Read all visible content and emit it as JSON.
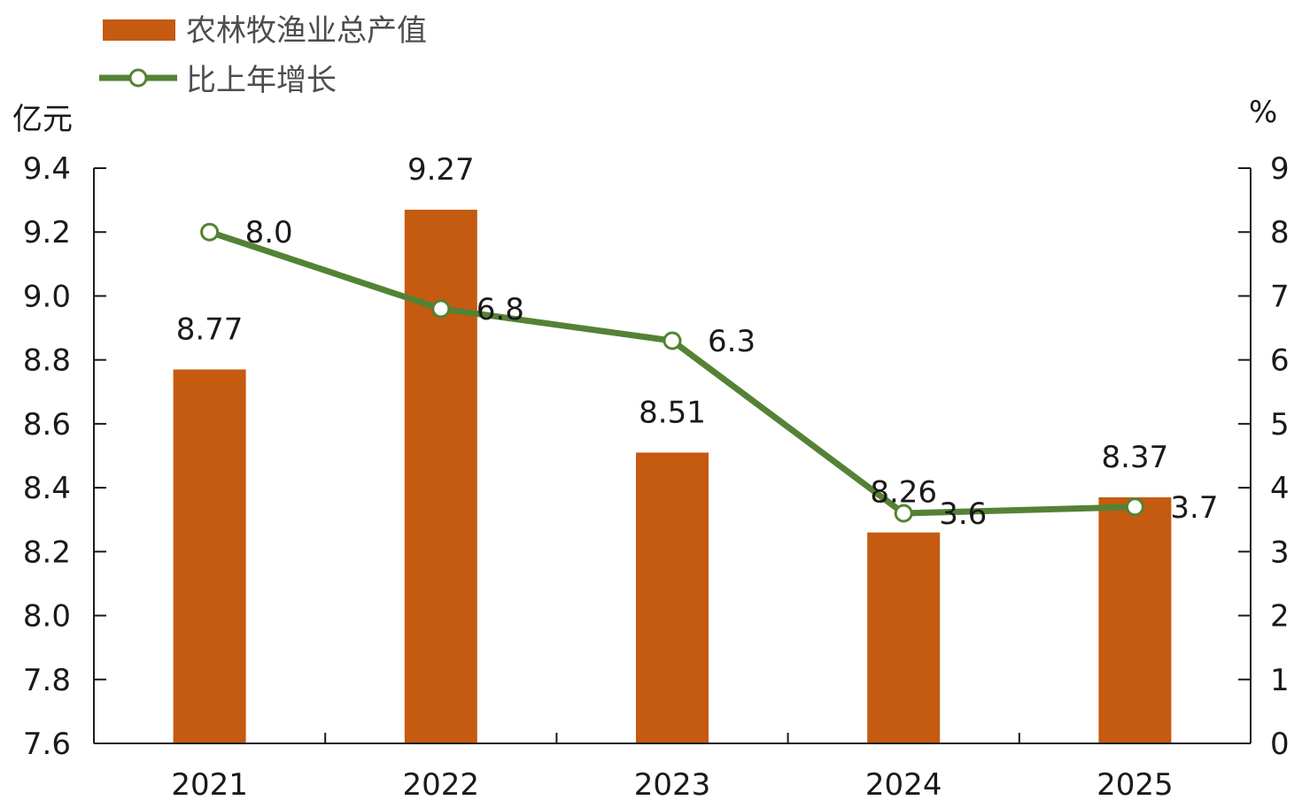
{
  "chart_data": {
    "type": "bar+line",
    "categories": [
      "2021",
      "2022",
      "2023",
      "2024",
      "2025"
    ],
    "series": [
      {
        "name": "农林牧渔业总产值",
        "kind": "bar",
        "axis": "left",
        "values": [
          8.77,
          9.27,
          8.51,
          8.26,
          8.37
        ],
        "labels": [
          "8.77",
          "9.27",
          "8.51",
          "8.26",
          "8.37"
        ],
        "color": "#c55a11"
      },
      {
        "name": "比上年增长",
        "kind": "line",
        "axis": "right",
        "values": [
          8.0,
          6.8,
          6.3,
          3.6,
          3.7
        ],
        "labels": [
          "8.0",
          "6.8",
          "6.3",
          "3.6",
          "3.7"
        ],
        "color": "#548235"
      }
    ],
    "y_left": {
      "unit": "亿元",
      "range": [
        7.6,
        9.4
      ],
      "ticks": [
        "7.6",
        "7.8",
        "8.0",
        "8.2",
        "8.4",
        "8.6",
        "8.8",
        "9.0",
        "9.2",
        "9.4"
      ]
    },
    "y_right": {
      "unit": "%",
      "range": [
        0,
        9
      ],
      "ticks": [
        "0",
        "1",
        "2",
        "3",
        "4",
        "5",
        "6",
        "7",
        "8",
        "9"
      ]
    },
    "legend_position": "top-left",
    "grid": false
  }
}
